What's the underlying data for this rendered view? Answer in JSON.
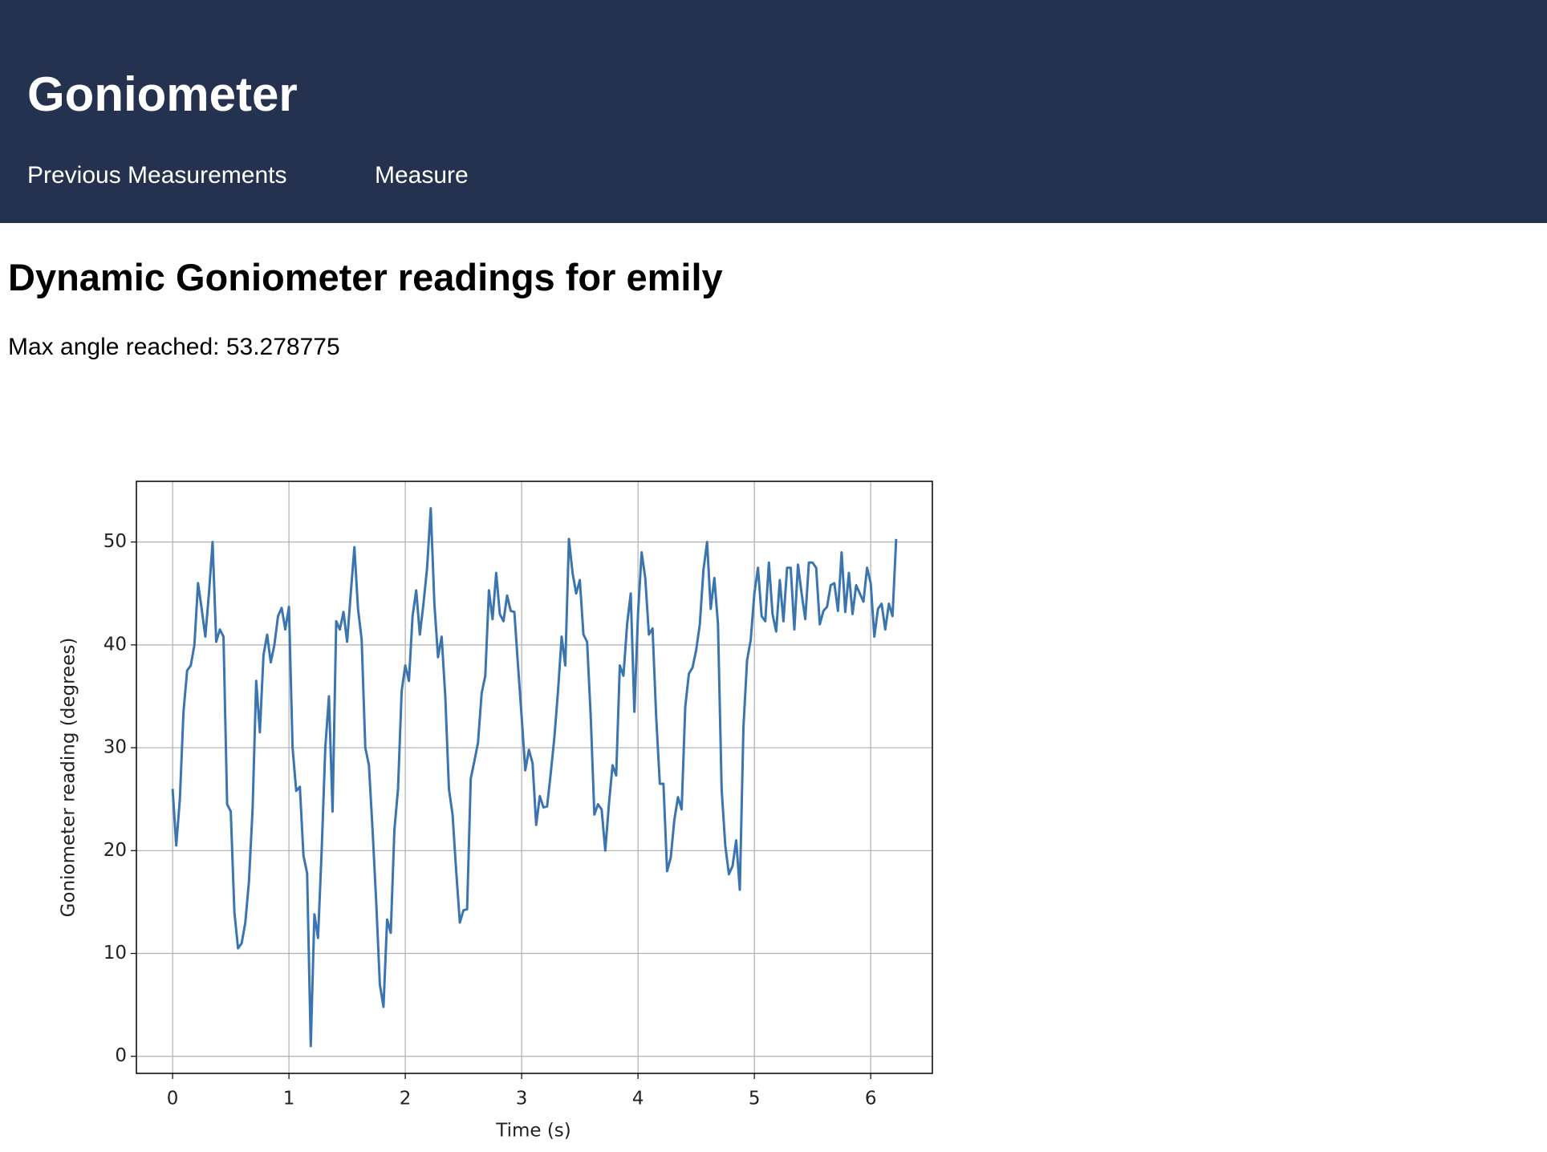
{
  "header": {
    "title": "Goniometer",
    "nav": [
      "Previous Measurements",
      "Measure"
    ]
  },
  "heading": "Dynamic Goniometer readings for emily",
  "max_angle_text": "Max angle reached: 53.278775",
  "chart_data": {
    "type": "line",
    "xlabel": "Time (s)",
    "ylabel": "Goniometer reading (degrees)",
    "color": "#3b75af",
    "grid": true,
    "xlim": [
      -0.311,
      6.53
    ],
    "ylim": [
      -1.66,
      55.9
    ],
    "xticks": [
      0,
      1,
      2,
      3,
      4,
      5,
      6
    ],
    "yticks": [
      0,
      10,
      20,
      30,
      40,
      50
    ],
    "x": [
      0,
      0.03125,
      0.0625,
      0.09375,
      0.125,
      0.15625,
      0.1875,
      0.21875,
      0.25,
      0.28125,
      0.3125,
      0.34375,
      0.375,
      0.40625,
      0.4375,
      0.46875,
      0.5,
      0.53125,
      0.5625,
      0.59375,
      0.625,
      0.65625,
      0.6875,
      0.71875,
      0.75,
      0.78125,
      0.8125,
      0.84375,
      0.875,
      0.90625,
      0.9375,
      0.96875,
      1,
      1.03125,
      1.0625,
      1.09375,
      1.125,
      1.15625,
      1.1875,
      1.21875,
      1.25,
      1.28125,
      1.3125,
      1.34375,
      1.375,
      1.40625,
      1.4375,
      1.46875,
      1.5,
      1.53125,
      1.5625,
      1.59375,
      1.625,
      1.65625,
      1.6875,
      1.71875,
      1.75,
      1.78125,
      1.8125,
      1.84375,
      1.875,
      1.90625,
      1.9375,
      1.96875,
      2,
      2.03125,
      2.0625,
      2.09375,
      2.125,
      2.15625,
      2.1875,
      2.21875,
      2.25,
      2.28125,
      2.3125,
      2.34375,
      2.375,
      2.40625,
      2.4375,
      2.46875,
      2.5,
      2.53125,
      2.5625,
      2.59375,
      2.625,
      2.65625,
      2.6875,
      2.71875,
      2.75,
      2.78125,
      2.8125,
      2.84375,
      2.875,
      2.90625,
      2.9375,
      2.96875,
      3,
      3.03125,
      3.0625,
      3.09375,
      3.125,
      3.15625,
      3.1875,
      3.21875,
      3.25,
      3.28125,
      3.3125,
      3.34375,
      3.375,
      3.40625,
      3.4375,
      3.46875,
      3.5,
      3.53125,
      3.5625,
      3.59375,
      3.625,
      3.65625,
      3.6875,
      3.71875,
      3.75,
      3.78125,
      3.8125,
      3.84375,
      3.875,
      3.90625,
      3.9375,
      3.96875,
      4,
      4.03125,
      4.0625,
      4.09375,
      4.125,
      4.15625,
      4.1875,
      4.21875,
      4.25,
      4.28125,
      4.3125,
      4.34375,
      4.375,
      4.40625,
      4.4375,
      4.46875,
      4.5,
      4.53125,
      4.5625,
      4.59375,
      4.625,
      4.65625,
      4.6875,
      4.71875,
      4.75,
      4.78125,
      4.8125,
      4.84375,
      4.875,
      4.90625,
      4.9375,
      4.96875,
      5,
      5.03125,
      5.0625,
      5.09375,
      5.125,
      5.15625,
      5.1875,
      5.21875,
      5.25,
      5.28125,
      5.3125,
      5.34375,
      5.375,
      5.40625,
      5.4375,
      5.46875,
      5.5,
      5.53125,
      5.5625,
      5.59375,
      5.625,
      5.65625,
      5.6875,
      5.71875,
      5.75,
      5.78125,
      5.8125,
      5.84375,
      5.875,
      5.90625,
      5.9375,
      5.96875,
      6,
      6.03125,
      6.0625,
      6.09375,
      6.125,
      6.15625,
      6.1875,
      6.21875
    ],
    "values": [
      26,
      20.5,
      25,
      33.5,
      37.5,
      38,
      40,
      46,
      43.5,
      40.8,
      45,
      50,
      40.3,
      41.5,
      40.8,
      24.5,
      23.8,
      14,
      10.5,
      11,
      13,
      17,
      24,
      36.5,
      31.5,
      39,
      41,
      38.3,
      40,
      42.8,
      43.6,
      41.5,
      43.7,
      30,
      25.8,
      26.2,
      19.5,
      17.8,
      1,
      13.8,
      11.5,
      20,
      30,
      35,
      23.8,
      42.3,
      41.5,
      43.2,
      40.3,
      45,
      49.5,
      43.5,
      40.5,
      30,
      28.3,
      22,
      15,
      7,
      4.8,
      13.3,
      12,
      22,
      26,
      35.5,
      38,
      36.5,
      42.8,
      45.3,
      41,
      44,
      47.5,
      53.28,
      44,
      38.8,
      40.8,
      35,
      26,
      23.5,
      18,
      13,
      14.2,
      14.3,
      27,
      28.7,
      30.5,
      35.3,
      37,
      45.3,
      42.5,
      47,
      43,
      42.3,
      44.8,
      43.3,
      43.2,
      38,
      33,
      27.8,
      29.8,
      28.5,
      22.5,
      25.3,
      24.2,
      24.3,
      27.5,
      31,
      35.5,
      40.8,
      38,
      50.3,
      47,
      45,
      46.3,
      41,
      40.3,
      33,
      23.5,
      24.5,
      24,
      20,
      24.5,
      28.3,
      27.3,
      38,
      37,
      42,
      45,
      33.5,
      43,
      49,
      46.5,
      41,
      41.6,
      33,
      26.5,
      26.5,
      18,
      19.3,
      23,
      25.2,
      24,
      34,
      37.2,
      37.8,
      39.5,
      42,
      47.3,
      50,
      43.5,
      46.5,
      42,
      26,
      20.5,
      17.7,
      18.5,
      21,
      16.2,
      32,
      38.5,
      40.5,
      45,
      47.5,
      42.8,
      42.3,
      48,
      43,
      41.3,
      46.3,
      42.3,
      47.5,
      47.5,
      41.5,
      47.8,
      45,
      42.5,
      48,
      48,
      47.5,
      42,
      43.3,
      43.7,
      45.8,
      46,
      43.3,
      49,
      43.2,
      47,
      43,
      45.8,
      45,
      44.2,
      47.5,
      46,
      40.8,
      43.5,
      44,
      41.5,
      44,
      42.8,
      50.3
    ]
  }
}
